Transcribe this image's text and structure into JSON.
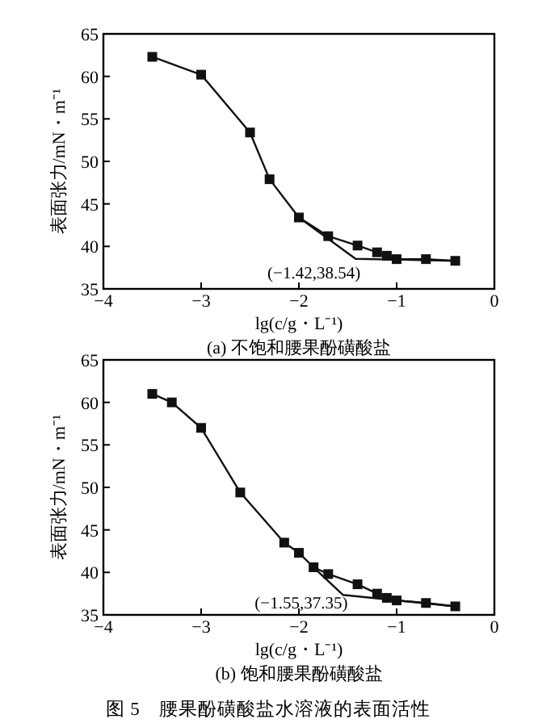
{
  "chart_data": [
    {
      "type": "line",
      "xlabel": "lg(c/g・L⁻¹)",
      "ylabel": "表面张力/mN・m⁻¹",
      "xlim": [
        -4,
        0
      ],
      "ylim": [
        35,
        65
      ],
      "xticks": [
        -4,
        -3,
        -2,
        -1,
        0
      ],
      "yticks": [
        35,
        40,
        45,
        50,
        55,
        60,
        65
      ],
      "grid": false,
      "line_style": "solid",
      "series": [
        {
          "type": "line",
          "marker": "square",
          "color": "#111111",
          "x": [
            -3.5,
            -3,
            -2.5,
            -2.3,
            -2,
            -1.7,
            -1.4,
            -1.2,
            -1.1,
            -1,
            -0.7,
            -0.4
          ],
          "values": [
            62.3,
            60.2,
            53.4,
            47.9,
            43.4,
            41.2,
            40.1,
            39.3,
            38.9,
            38.5,
            38.5,
            38.3
          ]
        },
        {
          "type": "line",
          "marker": "none",
          "color": "#111111",
          "x": [
            -2,
            -1.42,
            -0.4
          ],
          "values": [
            43.4,
            38.54,
            38.3
          ]
        }
      ],
      "annotations": [
        {
          "text": "(−1.42,38.54)",
          "x": -1.42,
          "y": 38.54
        },
        "(a) 不饱和腰果酚磺酸盐"
      ]
    },
    {
      "type": "line",
      "xlabel": "lg(c/g・L⁻¹)",
      "ylabel": "表面张力/mN・m⁻¹",
      "xlim": [
        -4,
        0
      ],
      "ylim": [
        35,
        65
      ],
      "xticks": [
        -4,
        -3,
        -2,
        -1,
        0
      ],
      "yticks": [
        35,
        40,
        45,
        50,
        55,
        60,
        65
      ],
      "grid": false,
      "line_style": "solid",
      "series": [
        {
          "type": "line",
          "marker": "square",
          "color": "#111111",
          "x": [
            -3.5,
            -3.3,
            -3,
            -2.6,
            -2.15,
            -2,
            -1.85,
            -1.7,
            -1.4,
            -1.2,
            -1.1,
            -1,
            -0.7,
            -0.4
          ],
          "values": [
            61,
            60,
            57,
            49.4,
            43.5,
            42.3,
            40.6,
            39.8,
            38.6,
            37.5,
            37,
            36.7,
            36.4,
            36
          ]
        },
        {
          "type": "line",
          "marker": "none",
          "color": "#111111",
          "x": [
            -1.85,
            -1.55,
            -0.4
          ],
          "values": [
            40.6,
            37.35,
            36
          ]
        }
      ],
      "annotations": [
        {
          "text": "(−1.55,37.35)",
          "x": -1.55,
          "y": 37.35
        },
        "(b) 饱和腰果酚磺酸盐",
        "图 5　腰果酚磺酸盐水溶液的表面活性"
      ]
    }
  ]
}
